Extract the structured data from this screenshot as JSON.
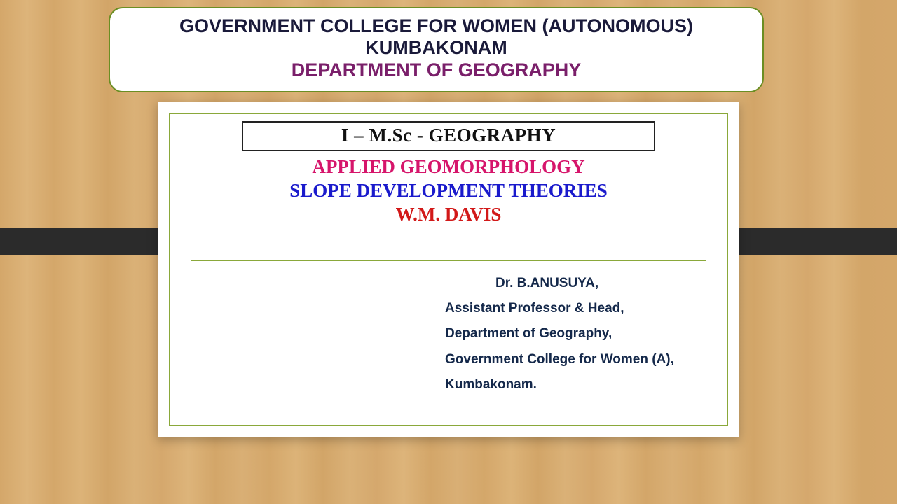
{
  "colors": {
    "header_border": "#6b8e23",
    "header_text": "#1a1a3a",
    "dept_text": "#7a1f6a",
    "card_bg": "#ffffff",
    "inner_border": "#8aa83a",
    "course_border": "#222222",
    "course_text": "#111111",
    "subject_text": "#d6156b",
    "topic_text": "#1a1acc",
    "author_text": "#d21919",
    "presenter_text": "#14284a",
    "bar_color": "#2b2b2b"
  },
  "header": {
    "line1": "GOVERNMENT COLLEGE FOR WOMEN (AUTONOMOUS)",
    "line2": "KUMBAKONAM",
    "department": "DEPARTMENT OF GEOGRAPHY"
  },
  "course": {
    "label": "I – M.Sc - GEOGRAPHY"
  },
  "titles": {
    "subject": "APPLIED GEOMORPHOLOGY",
    "topic": "SLOPE DEVELOPMENT THEORIES",
    "author": "W.M. DAVIS"
  },
  "presenter": {
    "name": "Dr. B.ANUSUYA,",
    "role": "Assistant Professor & Head,",
    "dept": "Department of Geography,",
    "college": "Government College for Women (A),",
    "city": "Kumbakonam."
  }
}
